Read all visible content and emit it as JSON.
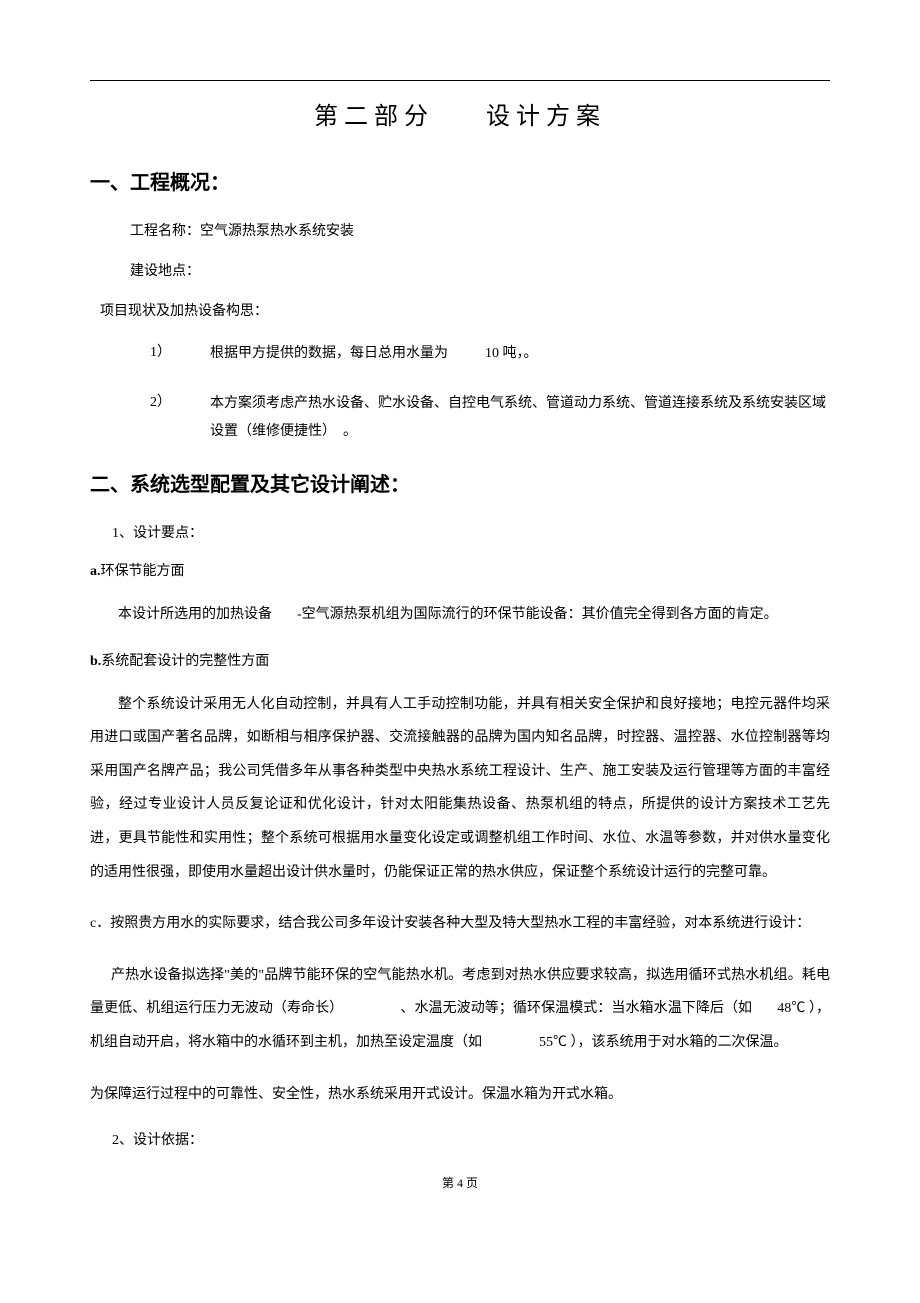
{
  "title": {
    "part1": "第二部分",
    "part2": "设计方案"
  },
  "section1": {
    "heading": "一、工程概况：",
    "line1": "工程名称：空气源热泵热水系统安装",
    "line2": "建设地点：",
    "line3": "项目现状及加热设备构思：",
    "items": [
      {
        "marker": "1）",
        "text_pre": "根据甲方提供的数据，每日总用水量为",
        "text_post": "10 吨，。"
      },
      {
        "marker": "2）",
        "text": "本方案须考虑产热水设备、贮水设备、自控电气系统、管道动力系统、管道连接系统及系统安装区域设置（维修便捷性）　。"
      }
    ]
  },
  "section2": {
    "heading": "二、系统选型配置及其它设计阐述：",
    "sub1": {
      "label": "1、设计要点：",
      "a": {
        "prefix": "a.",
        "title": "环保节能方面",
        "body_pre": "本设计所选用的加热设备",
        "body_post": "-空气源热泵机组为国际流行的环保节能设备：其价值完全得到各方面的肯定。"
      },
      "b": {
        "prefix": "b.",
        "title": "系统配套设计的完整性方面",
        "body": "整个系统设计采用无人化自动控制，并具有人工手动控制功能，并具有相关安全保护和良好接地；电控元器件均采用进口或国产著名品牌，如断相与相序保护器、交流接触器的品牌为国内知名品牌，时控器、温控器、水位控制器等均采用国产名牌产品；我公司凭借多年从事各种类型中央热水系统工程设计、生产、施工安装及运行管理等方面的丰富经验，经过专业设计人员反复论证和优化设计，针对太阳能集热设备、热泵机组的特点，所提供的设计方案技术工艺先进，更具节能性和实用性；整个系统可根据用水量变化设定或调整机组工作时间、水位、水温等参数，并对供水量变化的适用性很强，即使用水量超出设计供水量时，仍能保证正常的热水供应，保证整个系统设计运行的完整可靠。"
      },
      "c": {
        "prefix": "c",
        "title": "．按照贵方用水的实际要求，结合我公司多年设计安装各种大型及特大型热水工程的丰富经验，对本系统进行设计：",
        "body_seg1": "产热水设备拟选择\"美的\"品牌节能环保的空气能热水机。考虑到对热水供应要求较高，拟选用循环式热水机组。耗电量更低、机组运行压力无波动（寿命长）",
        "body_seg2": "、水温无波动等；循环保温模式：当水箱水温下降后（如",
        "body_temp1": "48℃",
        "body_seg3": "），机组自动开启，将水箱中的水循环到主机，加热至设定温度（如",
        "body_temp2": "55℃",
        "body_seg4": "），该系统用于对水箱的二次保温。",
        "body2": "为保障运行过程中的可靠性、安全性，热水系统采用开式设计。保温水箱为开式水箱。"
      }
    },
    "sub2": {
      "label": "2、设计依据："
    }
  },
  "pageNumber": "第 4 页"
}
